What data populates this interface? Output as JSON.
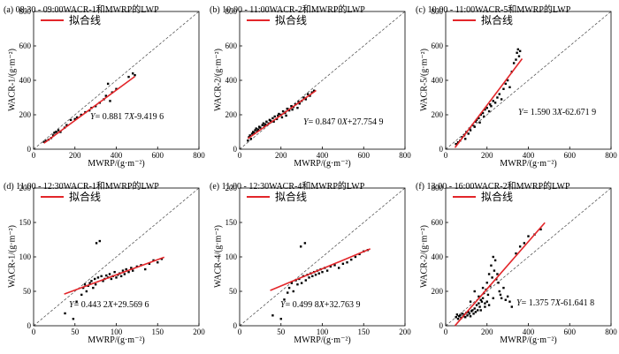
{
  "legend_label": "拟合线",
  "fit_color": "#e3262a",
  "point_color": "#000000",
  "chart_data": [
    {
      "id": "a",
      "type": "scatter",
      "title": "(a) 08:30 - 09:00WACR-1和MWRP的LWP",
      "xlabel": "MWRP/(g·m⁻²)",
      "ylabel": "WACR-1/(g·m⁻²)",
      "xlim": [
        0,
        800
      ],
      "ylim": [
        0,
        800
      ],
      "xticks": [
        0,
        200,
        400,
        600,
        800
      ],
      "yticks": [
        0,
        200,
        400,
        600,
        800
      ],
      "fit": {
        "slope": 0.8817,
        "intercept": -9.4196,
        "label": "Y= 0.881 7X-9.419 6",
        "x_range": [
          50,
          490
        ]
      },
      "points": [
        [
          50,
          42
        ],
        [
          60,
          48
        ],
        [
          72,
          55
        ],
        [
          85,
          65
        ],
        [
          95,
          80
        ],
        [
          100,
          95
        ],
        [
          110,
          100
        ],
        [
          120,
          110
        ],
        [
          130,
          100
        ],
        [
          150,
          125
        ],
        [
          160,
          140
        ],
        [
          180,
          170
        ],
        [
          200,
          175
        ],
        [
          210,
          185
        ],
        [
          230,
          200
        ],
        [
          250,
          215
        ],
        [
          270,
          225
        ],
        [
          280,
          240
        ],
        [
          300,
          250
        ],
        [
          320,
          270
        ],
        [
          340,
          290
        ],
        [
          350,
          310
        ],
        [
          360,
          380
        ],
        [
          370,
          280
        ],
        [
          380,
          330
        ],
        [
          400,
          350
        ],
        [
          460,
          420
        ],
        [
          480,
          440
        ],
        [
          490,
          430
        ]
      ]
    },
    {
      "id": "b",
      "type": "scatter",
      "title": "(b) 10:00 - 11:00WACR-2和MWRP的LWP",
      "xlabel": "MWRP/(g·m⁻²)",
      "ylabel": "WACR-2/(g·m⁻²)",
      "xlim": [
        0,
        800
      ],
      "ylim": [
        0,
        800
      ],
      "xticks": [
        0,
        200,
        400,
        600,
        800
      ],
      "yticks": [
        0,
        200,
        400,
        600,
        800
      ],
      "fit": {
        "slope": 0.847,
        "intercept": 27.7549,
        "label": "Y= 0.847 0X+27.754 9",
        "x_range": [
          40,
          370
        ]
      },
      "points": [
        [
          40,
          50
        ],
        [
          45,
          70
        ],
        [
          50,
          80
        ],
        [
          55,
          60
        ],
        [
          60,
          90
        ],
        [
          65,
          100
        ],
        [
          70,
          95
        ],
        [
          75,
          110
        ],
        [
          80,
          120
        ],
        [
          85,
          105
        ],
        [
          90,
          115
        ],
        [
          95,
          130
        ],
        [
          100,
          125
        ],
        [
          110,
          140
        ],
        [
          115,
          150
        ],
        [
          120,
          135
        ],
        [
          125,
          145
        ],
        [
          130,
          160
        ],
        [
          140,
          150
        ],
        [
          145,
          170
        ],
        [
          150,
          165
        ],
        [
          160,
          180
        ],
        [
          165,
          160
        ],
        [
          170,
          190
        ],
        [
          180,
          175
        ],
        [
          185,
          195
        ],
        [
          190,
          205
        ],
        [
          200,
          200
        ],
        [
          205,
          185
        ],
        [
          210,
          220
        ],
        [
          220,
          210
        ],
        [
          225,
          195
        ],
        [
          230,
          235
        ],
        [
          240,
          225
        ],
        [
          250,
          250
        ],
        [
          255,
          230
        ],
        [
          260,
          245
        ],
        [
          270,
          260
        ],
        [
          280,
          240
        ],
        [
          285,
          275
        ],
        [
          290,
          265
        ],
        [
          300,
          280
        ],
        [
          310,
          300
        ],
        [
          320,
          290
        ],
        [
          330,
          320
        ],
        [
          340,
          310
        ],
        [
          350,
          330
        ],
        [
          360,
          340
        ]
      ]
    },
    {
      "id": "c",
      "type": "scatter",
      "title": "(c) 10:00 - 11:00WACR-5和MWRP的LWP",
      "xlabel": "MWRP/(g·m⁻²)",
      "ylabel": "WACR-5/(g·m⁻²)",
      "xlim": [
        0,
        800
      ],
      "ylim": [
        0,
        800
      ],
      "xticks": [
        0,
        200,
        400,
        600,
        800
      ],
      "yticks": [
        0,
        200,
        400,
        600,
        800
      ],
      "fit": {
        "slope": 1.5903,
        "intercept": -62.6719,
        "label": "Y= 1.590 3X-62.671 9",
        "x_range": [
          45,
          370
        ]
      },
      "points": [
        [
          50,
          30
        ],
        [
          60,
          40
        ],
        [
          70,
          50
        ],
        [
          80,
          70
        ],
        [
          90,
          80
        ],
        [
          95,
          60
        ],
        [
          100,
          100
        ],
        [
          110,
          90
        ],
        [
          115,
          120
        ],
        [
          120,
          110
        ],
        [
          130,
          140
        ],
        [
          140,
          130
        ],
        [
          145,
          160
        ],
        [
          150,
          170
        ],
        [
          160,
          180
        ],
        [
          165,
          155
        ],
        [
          170,
          200
        ],
        [
          180,
          210
        ],
        [
          185,
          190
        ],
        [
          190,
          230
        ],
        [
          200,
          240
        ],
        [
          210,
          220
        ],
        [
          215,
          260
        ],
        [
          220,
          250
        ],
        [
          230,
          280
        ],
        [
          240,
          270
        ],
        [
          250,
          300
        ],
        [
          260,
          320
        ],
        [
          270,
          290
        ],
        [
          280,
          350
        ],
        [
          290,
          380
        ],
        [
          300,
          400
        ],
        [
          310,
          360
        ],
        [
          320,
          450
        ],
        [
          330,
          500
        ],
        [
          340,
          520
        ],
        [
          345,
          560
        ],
        [
          350,
          580
        ],
        [
          355,
          540
        ],
        [
          360,
          570
        ]
      ]
    },
    {
      "id": "d",
      "type": "scatter",
      "title": "(d) 11:00 - 12:30WACR-1和MWRP的LWP",
      "xlabel": "MWRP/(g·m⁻²)",
      "ylabel": "WACR-1/(g·m⁻²)",
      "xlim": [
        0,
        200
      ],
      "ylim": [
        0,
        200
      ],
      "xticks": [
        0,
        50,
        100,
        150,
        200
      ],
      "yticks": [
        0,
        50,
        100,
        150,
        200
      ],
      "fit": {
        "slope": 0.4432,
        "intercept": 29.5696,
        "label": "Y= 0.443 2X+29.569 6",
        "x_range": [
          37,
          158
        ]
      },
      "points": [
        [
          38,
          18
        ],
        [
          48,
          10
        ],
        [
          52,
          35
        ],
        [
          58,
          45
        ],
        [
          60,
          55
        ],
        [
          62,
          60
        ],
        [
          64,
          50
        ],
        [
          66,
          58
        ],
        [
          68,
          62
        ],
        [
          70,
          65
        ],
        [
          72,
          55
        ],
        [
          74,
          68
        ],
        [
          75,
          60
        ],
        [
          76,
          120
        ],
        [
          78,
          70
        ],
        [
          80,
          123
        ],
        [
          82,
          72
        ],
        [
          84,
          65
        ],
        [
          86,
          68
        ],
        [
          88,
          73
        ],
        [
          90,
          70
        ],
        [
          92,
          75
        ],
        [
          94,
          68
        ],
        [
          96,
          72
        ],
        [
          98,
          78
        ],
        [
          100,
          70
        ],
        [
          102,
          74
        ],
        [
          104,
          76
        ],
        [
          106,
          72
        ],
        [
          108,
          80
        ],
        [
          110,
          75
        ],
        [
          112,
          82
        ],
        [
          115,
          78
        ],
        [
          118,
          84
        ],
        [
          120,
          80
        ],
        [
          125,
          86
        ],
        [
          130,
          88
        ],
        [
          135,
          82
        ],
        [
          140,
          90
        ],
        [
          145,
          95
        ],
        [
          150,
          92
        ],
        [
          155,
          97
        ]
      ]
    },
    {
      "id": "e",
      "type": "scatter",
      "title": "(e) 11:00 - 12:30WACR-4和MWRP的LWP",
      "xlabel": "MWRP/(g·m⁻²)",
      "ylabel": "WACR-4/(g·m⁻²)",
      "xlim": [
        0,
        200
      ],
      "ylim": [
        0,
        200
      ],
      "xticks": [
        0,
        50,
        100,
        150,
        200
      ],
      "yticks": [
        0,
        50,
        100,
        150,
        200
      ],
      "fit": {
        "slope": 0.4998,
        "intercept": 32.7639,
        "label": "Y= 0.499 8X+32.763 9",
        "x_range": [
          37,
          158
        ]
      },
      "points": [
        [
          40,
          15
        ],
        [
          50,
          10
        ],
        [
          54,
          38
        ],
        [
          58,
          48
        ],
        [
          60,
          55
        ],
        [
          63,
          62
        ],
        [
          65,
          50
        ],
        [
          68,
          66
        ],
        [
          70,
          60
        ],
        [
          72,
          68
        ],
        [
          74,
          115
        ],
        [
          75,
          62
        ],
        [
          77,
          72
        ],
        [
          79,
          120
        ],
        [
          80,
          66
        ],
        [
          82,
          74
        ],
        [
          84,
          70
        ],
        [
          86,
          76
        ],
        [
          88,
          72
        ],
        [
          90,
          78
        ],
        [
          92,
          74
        ],
        [
          94,
          80
        ],
        [
          96,
          76
        ],
        [
          98,
          82
        ],
        [
          100,
          78
        ],
        [
          103,
          84
        ],
        [
          106,
          80
        ],
        [
          110,
          86
        ],
        [
          115,
          88
        ],
        [
          120,
          84
        ],
        [
          125,
          90
        ],
        [
          130,
          92
        ],
        [
          135,
          96
        ],
        [
          140,
          100
        ],
        [
          145,
          104
        ],
        [
          150,
          108
        ],
        [
          155,
          110
        ]
      ]
    },
    {
      "id": "f",
      "type": "scatter",
      "title": "(f) 13:00 - 16:00WACR-2和MWRP的LWP",
      "xlabel": "MWRP/(g·m⁻²)",
      "ylabel": "WACR-2/(g·m⁻²)",
      "xlim": [
        0,
        800
      ],
      "ylim": [
        0,
        800
      ],
      "xticks": [
        0,
        200,
        400,
        600,
        800
      ],
      "yticks": [
        0,
        200,
        400,
        600,
        800
      ],
      "fit": {
        "slope": 1.3757,
        "intercept": -61.6418,
        "label": "Y= 1.375 7X-61.641 8",
        "x_range": [
          45,
          480
        ]
      },
      "points": [
        [
          50,
          50
        ],
        [
          55,
          65
        ],
        [
          60,
          40
        ],
        [
          65,
          55
        ],
        [
          70,
          60
        ],
        [
          75,
          45
        ],
        [
          80,
          70
        ],
        [
          85,
          55
        ],
        [
          90,
          65
        ],
        [
          95,
          50
        ],
        [
          100,
          75
        ],
        [
          105,
          60
        ],
        [
          110,
          80
        ],
        [
          115,
          70
        ],
        [
          120,
          55
        ],
        [
          125,
          85
        ],
        [
          130,
          90
        ],
        [
          135,
          70
        ],
        [
          140,
          100
        ],
        [
          145,
          80
        ],
        [
          150,
          120
        ],
        [
          155,
          90
        ],
        [
          160,
          130
        ],
        [
          165,
          110
        ],
        [
          170,
          150
        ],
        [
          175,
          140
        ],
        [
          180,
          160
        ],
        [
          185,
          190
        ],
        [
          190,
          130
        ],
        [
          195,
          210
        ],
        [
          200,
          250
        ],
        [
          205,
          180
        ],
        [
          210,
          300
        ],
        [
          215,
          230
        ],
        [
          220,
          350
        ],
        [
          225,
          280
        ],
        [
          230,
          400
        ],
        [
          235,
          320
        ],
        [
          240,
          380
        ],
        [
          245,
          270
        ],
        [
          250,
          300
        ],
        [
          255,
          250
        ],
        [
          260,
          200
        ],
        [
          265,
          180
        ],
        [
          270,
          160
        ],
        [
          280,
          220
        ],
        [
          290,
          150
        ],
        [
          300,
          170
        ],
        [
          310,
          140
        ],
        [
          320,
          110
        ],
        [
          340,
          420
        ],
        [
          360,
          460
        ],
        [
          380,
          480
        ],
        [
          400,
          520
        ],
        [
          430,
          530
        ],
        [
          460,
          560
        ],
        [
          120,
          140
        ],
        [
          140,
          200
        ],
        [
          160,
          170
        ],
        [
          180,
          220
        ],
        [
          200,
          140
        ],
        [
          210,
          120
        ],
        [
          230,
          160
        ],
        [
          170,
          90
        ],
        [
          190,
          110
        ]
      ]
    }
  ]
}
